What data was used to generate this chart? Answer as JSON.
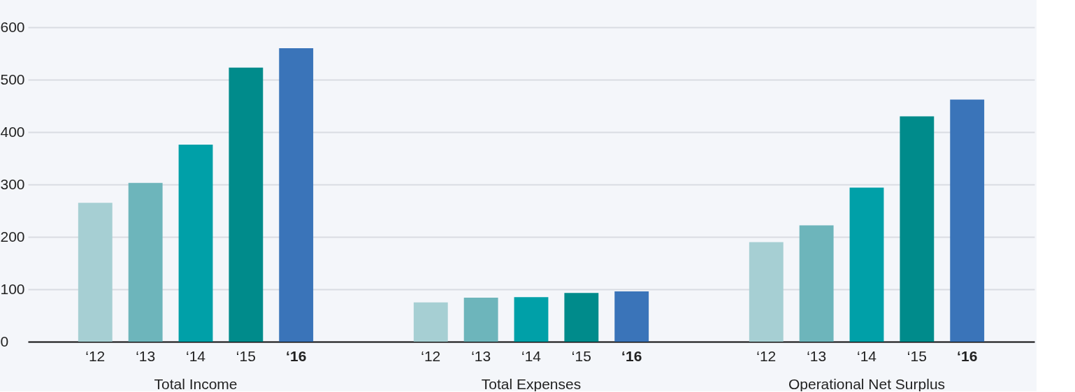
{
  "chart_data": {
    "type": "bar",
    "categories": [
      "Total Income",
      "Total Expenses",
      "Operational Net Surplus"
    ],
    "series": [
      {
        "name": "‘12",
        "color": "#a6cfd3",
        "values": [
          265,
          75,
          190
        ]
      },
      {
        "name": "‘13",
        "color": "#6db5bb",
        "values": [
          303,
          84,
          222
        ]
      },
      {
        "name": "‘14",
        "color": "#00a0a8",
        "values": [
          376,
          85,
          294
        ]
      },
      {
        "name": "‘15",
        "color": "#008b8b",
        "values": [
          523,
          93,
          430
        ]
      },
      {
        "name": "‘16",
        "color": "#3a74b9",
        "values": [
          560,
          96,
          462
        ]
      }
    ],
    "ylim": [
      0,
      600
    ],
    "yticks": [
      0,
      100,
      200,
      300,
      400,
      500,
      600
    ],
    "grid": "y",
    "legend": false
  }
}
